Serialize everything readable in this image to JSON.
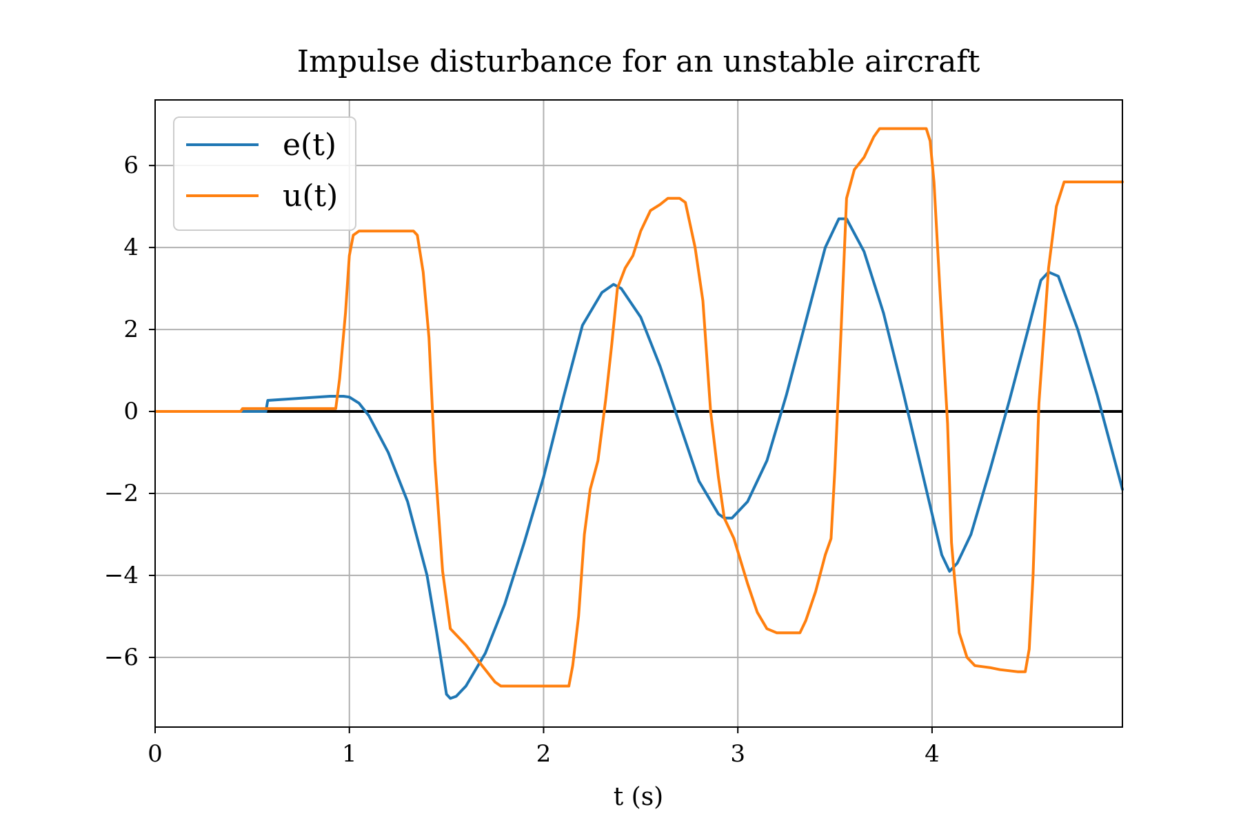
{
  "chart_data": {
    "type": "line",
    "title": "Impulse disturbance for an unstable aircraft",
    "xlabel": "t (s)",
    "ylabel": "",
    "xlim": [
      0,
      4.98
    ],
    "ylim": [
      -7.7,
      7.6
    ],
    "xticks": [
      0,
      1,
      2,
      3,
      4
    ],
    "xtick_labels": [
      "0",
      "1",
      "2",
      "3",
      "4"
    ],
    "yticks": [
      -6,
      -4,
      -2,
      0,
      2,
      4,
      6
    ],
    "ytick_labels": [
      "−6",
      "−4",
      "−2",
      "0",
      "2",
      "4",
      "6"
    ],
    "grid": true,
    "legend_position": "top-left",
    "zero_line": true,
    "series": [
      {
        "name": "e(t)",
        "color": "#1f77b4",
        "points": [
          [
            0,
            0
          ],
          [
            0.44,
            0
          ],
          [
            0.57,
            0
          ],
          [
            0.58,
            0.27
          ],
          [
            0.9,
            0.37
          ],
          [
            0.97,
            0.37
          ],
          [
            1.0,
            0.35
          ],
          [
            1.05,
            0.2
          ],
          [
            1.1,
            -0.1
          ],
          [
            1.2,
            -1.0
          ],
          [
            1.3,
            -2.2
          ],
          [
            1.4,
            -4.0
          ],
          [
            1.45,
            -5.4
          ],
          [
            1.5,
            -6.9
          ],
          [
            1.52,
            -7.0
          ],
          [
            1.55,
            -6.95
          ],
          [
            1.6,
            -6.7
          ],
          [
            1.7,
            -5.9
          ],
          [
            1.8,
            -4.7
          ],
          [
            1.9,
            -3.2
          ],
          [
            2.0,
            -1.6
          ],
          [
            2.1,
            0.3
          ],
          [
            2.2,
            2.1
          ],
          [
            2.3,
            2.9
          ],
          [
            2.36,
            3.1
          ],
          [
            2.4,
            3.0
          ],
          [
            2.5,
            2.3
          ],
          [
            2.6,
            1.1
          ],
          [
            2.7,
            -0.3
          ],
          [
            2.8,
            -1.7
          ],
          [
            2.9,
            -2.5
          ],
          [
            2.93,
            -2.6
          ],
          [
            2.97,
            -2.6
          ],
          [
            3.05,
            -2.2
          ],
          [
            3.15,
            -1.2
          ],
          [
            3.25,
            0.4
          ],
          [
            3.35,
            2.2
          ],
          [
            3.45,
            4.0
          ],
          [
            3.52,
            4.7
          ],
          [
            3.56,
            4.7
          ],
          [
            3.65,
            3.9
          ],
          [
            3.75,
            2.4
          ],
          [
            3.85,
            0.5
          ],
          [
            3.95,
            -1.5
          ],
          [
            4.05,
            -3.5
          ],
          [
            4.09,
            -3.9
          ],
          [
            4.13,
            -3.7
          ],
          [
            4.2,
            -3.0
          ],
          [
            4.3,
            -1.4
          ],
          [
            4.4,
            0.3
          ],
          [
            4.5,
            2.1
          ],
          [
            4.56,
            3.2
          ],
          [
            4.6,
            3.4
          ],
          [
            4.65,
            3.3
          ],
          [
            4.75,
            2.0
          ],
          [
            4.85,
            0.4
          ],
          [
            4.98,
            -1.9
          ]
        ]
      },
      {
        "name": "u(t)",
        "color": "#ff7f0e",
        "points": [
          [
            0,
            0
          ],
          [
            0.44,
            0
          ],
          [
            0.45,
            0.07
          ],
          [
            0.93,
            0.07
          ],
          [
            0.95,
            0.8
          ],
          [
            0.98,
            2.4
          ],
          [
            1.0,
            3.8
          ],
          [
            1.02,
            4.3
          ],
          [
            1.05,
            4.4
          ],
          [
            1.33,
            4.4
          ],
          [
            1.35,
            4.3
          ],
          [
            1.38,
            3.4
          ],
          [
            1.41,
            1.8
          ],
          [
            1.44,
            -1.2
          ],
          [
            1.48,
            -3.9
          ],
          [
            1.52,
            -5.3
          ],
          [
            1.55,
            -5.45
          ],
          [
            1.6,
            -5.7
          ],
          [
            1.65,
            -6.0
          ],
          [
            1.7,
            -6.3
          ],
          [
            1.75,
            -6.6
          ],
          [
            1.78,
            -6.7
          ],
          [
            2.13,
            -6.7
          ],
          [
            2.15,
            -6.2
          ],
          [
            2.18,
            -5.0
          ],
          [
            2.21,
            -3.0
          ],
          [
            2.24,
            -1.9
          ],
          [
            2.28,
            -1.2
          ],
          [
            2.32,
            0.3
          ],
          [
            2.35,
            1.6
          ],
          [
            2.38,
            3.0
          ],
          [
            2.42,
            3.5
          ],
          [
            2.46,
            3.8
          ],
          [
            2.5,
            4.4
          ],
          [
            2.55,
            4.9
          ],
          [
            2.6,
            5.05
          ],
          [
            2.64,
            5.2
          ],
          [
            2.7,
            5.2
          ],
          [
            2.73,
            5.1
          ],
          [
            2.78,
            4.0
          ],
          [
            2.82,
            2.7
          ],
          [
            2.86,
            0.0
          ],
          [
            2.9,
            -1.6
          ],
          [
            2.93,
            -2.6
          ],
          [
            2.98,
            -3.1
          ],
          [
            3.05,
            -4.2
          ],
          [
            3.1,
            -4.9
          ],
          [
            3.15,
            -5.3
          ],
          [
            3.2,
            -5.4
          ],
          [
            3.32,
            -5.4
          ],
          [
            3.35,
            -5.1
          ],
          [
            3.4,
            -4.4
          ],
          [
            3.45,
            -3.5
          ],
          [
            3.48,
            -3.1
          ],
          [
            3.5,
            -1.4
          ],
          [
            3.53,
            1.8
          ],
          [
            3.56,
            5.2
          ],
          [
            3.6,
            5.9
          ],
          [
            3.65,
            6.2
          ],
          [
            3.7,
            6.7
          ],
          [
            3.73,
            6.9
          ],
          [
            3.97,
            6.9
          ],
          [
            3.99,
            6.6
          ],
          [
            4.01,
            5.6
          ],
          [
            4.04,
            3.0
          ],
          [
            4.08,
            -0.3
          ],
          [
            4.1,
            -3.2
          ],
          [
            4.14,
            -5.4
          ],
          [
            4.18,
            -6.0
          ],
          [
            4.22,
            -6.2
          ],
          [
            4.3,
            -6.25
          ],
          [
            4.35,
            -6.3
          ],
          [
            4.44,
            -6.35
          ],
          [
            4.48,
            -6.35
          ],
          [
            4.5,
            -5.8
          ],
          [
            4.52,
            -4.0
          ],
          [
            4.55,
            0.2
          ],
          [
            4.6,
            3.5
          ],
          [
            4.64,
            5.0
          ],
          [
            4.68,
            5.6
          ],
          [
            4.98,
            5.6
          ]
        ]
      }
    ]
  }
}
